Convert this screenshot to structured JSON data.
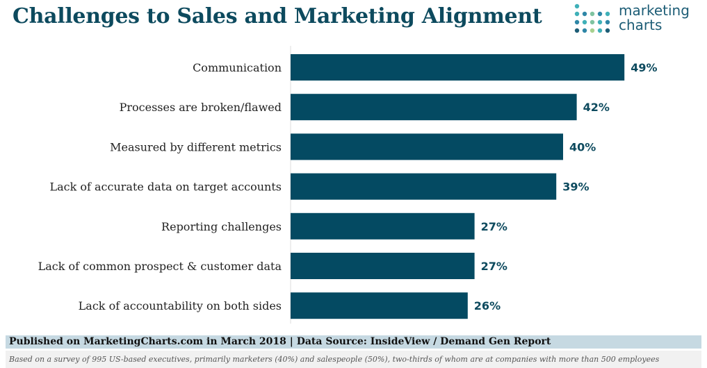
{
  "title": "Challenges to Sales and Marketing Alignment",
  "logo": {
    "line1": "marketing",
    "line2": "charts"
  },
  "colors": {
    "bar": "#044a62",
    "title": "#0d4a5e",
    "footer_bg": "#c6d9e2",
    "note_bg": "#f1f1f1"
  },
  "chart_data": {
    "type": "bar",
    "orientation": "horizontal",
    "categories": [
      "Communication",
      "Processes are broken/flawed",
      "Measured by different metrics",
      "Lack of accurate data on target accounts",
      "Reporting challenges",
      "Lack of common prospect & customer data",
      "Lack of accountability on both sides"
    ],
    "values": [
      49,
      42,
      40,
      39,
      27,
      27,
      26
    ],
    "value_labels": [
      "49%",
      "42%",
      "40%",
      "39%",
      "27%",
      "27%",
      "26%"
    ],
    "unit": "%",
    "grid": false,
    "legend": "none"
  },
  "footer": {
    "source": "Published on MarketingCharts.com in March 2018 | Data Source: InsideView / Demand Gen Report",
    "note": "Based on a survey of 995 US-based executives, primarily marketers (40%) and salespeople (50%), two-thirds of whom are at companies with more than 500 employees"
  }
}
